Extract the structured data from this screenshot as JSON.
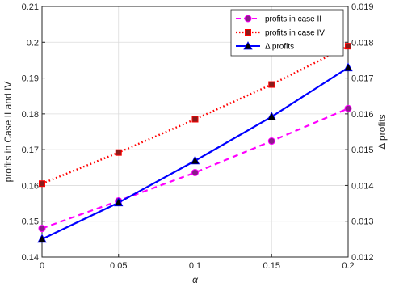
{
  "chart_data": {
    "type": "line",
    "title": "",
    "xlabel": "α",
    "ylabel_left": "profits in Case II and IV",
    "ylabel_right": "Δ profits",
    "x": [
      0,
      0.05,
      0.1,
      0.15,
      0.2
    ],
    "x_ticks": [
      "0",
      "0.05",
      "0.1",
      "0.15",
      "0.2"
    ],
    "xlim": [
      0,
      0.2
    ],
    "ylim_left": [
      0.14,
      0.21
    ],
    "y_ticks_left": [
      "0.14",
      "0.15",
      "0.16",
      "0.17",
      "0.18",
      "0.19",
      "0.2",
      "0.21"
    ],
    "ylim_right": [
      0.012,
      0.019
    ],
    "y_ticks_right": [
      "0.012",
      "0.013",
      "0.014",
      "0.015",
      "0.016",
      "0.017",
      "0.018",
      "0.019"
    ],
    "grid": true,
    "legend_position": "top-right",
    "series": [
      {
        "name": "profits in case II",
        "axis": "left",
        "values": [
          0.148,
          0.1557,
          0.1636,
          0.1724,
          0.1815
        ],
        "color": "#ff00ff",
        "line": "dashed",
        "marker": "circle",
        "marker_fill": "#8b1a8b"
      },
      {
        "name": "profits in case IV",
        "axis": "left",
        "values": [
          0.1605,
          0.1692,
          0.1785,
          0.1882,
          0.1989
        ],
        "color": "#ff0000",
        "line": "dotted",
        "marker": "square",
        "marker_fill": "#8b1a1a"
      },
      {
        "name": "Δ profits",
        "axis": "right",
        "values": [
          0.0125,
          0.01352,
          0.01469,
          0.01592,
          0.01729
        ],
        "color": "#0000ff",
        "line": "solid",
        "marker": "triangle",
        "marker_fill": "#000000"
      }
    ]
  }
}
